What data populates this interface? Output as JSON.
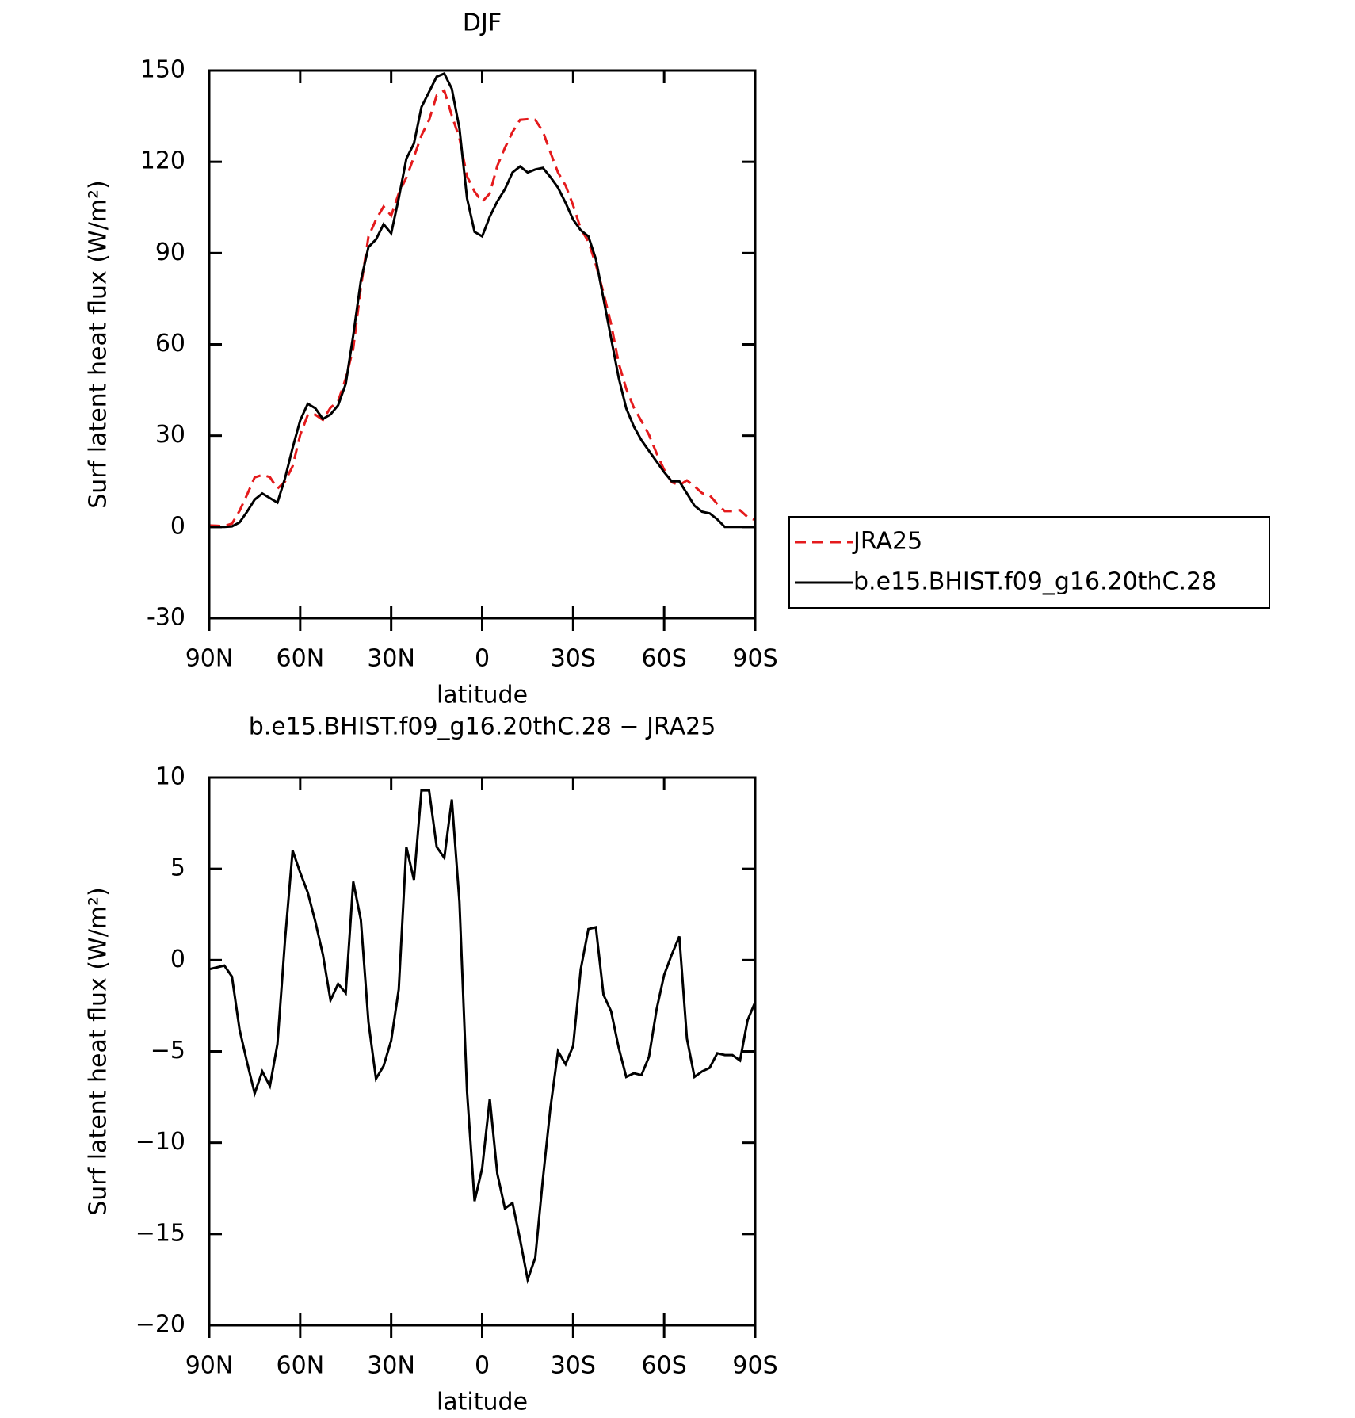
{
  "chart_data": [
    {
      "type": "line",
      "title": "DJF",
      "xlabel": "latitude",
      "ylabel": "Surf latent heat flux (W/m²)",
      "x": [
        90,
        87.5,
        85,
        82.5,
        80,
        77.5,
        75,
        72.5,
        70,
        67.5,
        65,
        62.5,
        60,
        57.5,
        55,
        52.5,
        50,
        47.5,
        45,
        42.5,
        40,
        37.5,
        35,
        32.5,
        30,
        27.5,
        25,
        22.5,
        20,
        17.5,
        15,
        12.5,
        10,
        7.5,
        5,
        2.5,
        0,
        -2.5,
        -5,
        -7.5,
        -10,
        -12.5,
        -15,
        -17.5,
        -20,
        -22.5,
        -25,
        -27.5,
        -30,
        -32.5,
        -35,
        -37.5,
        -40,
        -42.5,
        -45,
        -47.5,
        -50,
        -52.5,
        -55,
        -57.5,
        -60,
        -62.5,
        -65,
        -67.5,
        -70,
        -72.5,
        -75,
        -77.5,
        -80,
        -82.5,
        -85,
        -87.5,
        -90
      ],
      "xlim": [
        90,
        -90
      ],
      "xticks": [
        {
          "value": 90,
          "label": "90N"
        },
        {
          "value": 60,
          "label": "60N"
        },
        {
          "value": 30,
          "label": "30N"
        },
        0,
        {
          "value": -30,
          "label": "30S"
        },
        {
          "value": -60,
          "label": "60S"
        },
        {
          "value": -90,
          "label": "90S"
        }
      ],
      "ylim": [
        -30,
        150
      ],
      "yticks": [
        -30,
        0,
        30,
        60,
        90,
        120,
        150
      ],
      "series": [
        {
          "name": "JRA25",
          "color": "#e41a1c",
          "dashed": true,
          "values": [
            0.5,
            0.4,
            0.3,
            1.1,
            5.3,
            10.6,
            16.3,
            17.1,
            16.4,
            12.6,
            14.9,
            20,
            30.2,
            36.8,
            36.9,
            35.2,
            39.2,
            41.3,
            48.8,
            58.7,
            78.8,
            95.4,
            101,
            105.3,
            102.3,
            109.6,
            114.8,
            121.6,
            128.7,
            133.7,
            141.8,
            143.4,
            135.2,
            127.8,
            115.2,
            110.2,
            106.9,
            109.6,
            118.7,
            124.6,
            129.8,
            133.8,
            134,
            133.8,
            130,
            123.1,
            116.5,
            112.2,
            105.7,
            98,
            93.8,
            86.2,
            76.9,
            66.7,
            53.8,
            45.4,
            39.2,
            34.8,
            30.3,
            24.2,
            18.8,
            14.7,
            13.7,
            15.3,
            13.4,
            11.1,
            10.4,
            7.6,
            5.2,
            5.2,
            5.5,
            3.3,
            2.3
          ]
        },
        {
          "name": "b.e15.BHIST.f09_g16.20thC.28",
          "color": "#000000",
          "dashed": false,
          "values": [
            0,
            0,
            0,
            0.2,
            1.5,
            5,
            9,
            11,
            9.5,
            8,
            16,
            26,
            35,
            40.5,
            39,
            35.5,
            37,
            40,
            47,
            63,
            81,
            92,
            94.5,
            99.5,
            96.5,
            108,
            121,
            126,
            138,
            143,
            148,
            149,
            144,
            131,
            108,
            97,
            95.5,
            102,
            107,
            111,
            116.5,
            118.5,
            116.5,
            117.5,
            118,
            115,
            111.5,
            106.5,
            101,
            97.5,
            95.5,
            88,
            75,
            62,
            49,
            39,
            33,
            28.5,
            25,
            21.5,
            18,
            15,
            15,
            11,
            7,
            5,
            4.5,
            2.5,
            0,
            0,
            0,
            0,
            0
          ]
        }
      ]
    },
    {
      "type": "line",
      "title": "b.e15.BHIST.f09_g16.20thC.28 − JRA25",
      "xlabel": "latitude",
      "ylabel": "Surf latent heat flux (W/m²)",
      "x": [
        90,
        87.5,
        85,
        82.5,
        80,
        77.5,
        75,
        72.5,
        70,
        67.5,
        65,
        62.5,
        60,
        57.5,
        55,
        52.5,
        50,
        47.5,
        45,
        42.5,
        40,
        37.5,
        35,
        32.5,
        30,
        27.5,
        25,
        22.5,
        20,
        17.5,
        15,
        12.5,
        10,
        7.5,
        5,
        2.5,
        0,
        -2.5,
        -5,
        -7.5,
        -10,
        -12.5,
        -15,
        -17.5,
        -20,
        -22.5,
        -25,
        -27.5,
        -30,
        -32.5,
        -35,
        -37.5,
        -40,
        -42.5,
        -45,
        -47.5,
        -50,
        -52.5,
        -55,
        -57.5,
        -60,
        -62.5,
        -65,
        -67.5,
        -70,
        -72.5,
        -75,
        -77.5,
        -80,
        -82.5,
        -85,
        -87.5,
        -90
      ],
      "xlim": [
        90,
        -90
      ],
      "xticks": [
        {
          "value": 90,
          "label": "90N"
        },
        {
          "value": 60,
          "label": "60N"
        },
        {
          "value": 30,
          "label": "30N"
        },
        0,
        {
          "value": -30,
          "label": "30S"
        },
        {
          "value": -60,
          "label": "60S"
        },
        {
          "value": -90,
          "label": "90S"
        }
      ],
      "ylim": [
        -20,
        10
      ],
      "yticks": [
        {
          "value": -20,
          "label": "−20"
        },
        {
          "value": -15,
          "label": "−15"
        },
        {
          "value": -10,
          "label": "−10"
        },
        {
          "value": -5,
          "label": "−5"
        },
        0,
        5,
        10
      ],
      "series": [
        {
          "color": "#000000",
          "dashed": false,
          "values": [
            -0.5,
            -0.4,
            -0.3,
            -0.9,
            -3.8,
            -5.6,
            -7.3,
            -6.1,
            -6.9,
            -4.6,
            1.1,
            6,
            4.8,
            3.7,
            2.1,
            0.3,
            -2.2,
            -1.3,
            -1.8,
            4.3,
            2.2,
            -3.4,
            -6.5,
            -5.8,
            -4.4,
            -1.6,
            6.2,
            4.4,
            9.3,
            9.3,
            6.2,
            5.6,
            8.8,
            3.2,
            -7.2,
            -13.2,
            -11.4,
            -7.6,
            -11.7,
            -13.6,
            -13.3,
            -15.3,
            -17.5,
            -16.3,
            -12,
            -8.1,
            -5,
            -5.7,
            -4.7,
            -0.5,
            1.7,
            1.8,
            -1.9,
            -2.8,
            -4.8,
            -6.4,
            -6.2,
            -6.3,
            -5.3,
            -2.7,
            -0.8,
            0.3,
            1.3,
            -4.3,
            -6.4,
            -6.1,
            -5.9,
            -5.1,
            -5.2,
            -5.2,
            -5.5,
            -3.3,
            -2.3
          ]
        }
      ]
    }
  ]
}
